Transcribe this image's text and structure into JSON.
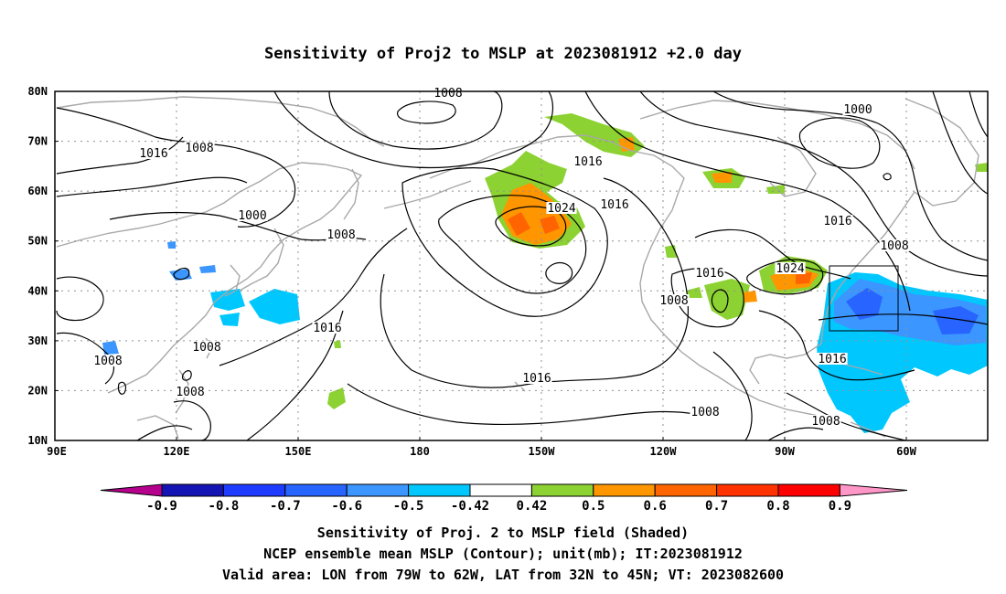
{
  "title": "Sensitivity of Proj2 to MSLP at 2023081912 +2.0 day",
  "map": {
    "lon_labels": [
      "90E",
      "120E",
      "150E",
      "180",
      "150W",
      "120W",
      "90W",
      "60W"
    ],
    "lat_labels": [
      "80N",
      "70N",
      "60N",
      "50N",
      "40N",
      "30N",
      "20N",
      "10N"
    ],
    "contour_labels": [
      "1008",
      "1016",
      "1008",
      "1000",
      "1008",
      "1016",
      "1008",
      "1008",
      "1008",
      "1024",
      "1016",
      "1016",
      "1016",
      "1000",
      "1016",
      "1008",
      "1016",
      "1024",
      "1008",
      "1016",
      "1008",
      "1008"
    ],
    "valid_box": {
      "lon_from": "79W",
      "lon_to": "62W",
      "lat_from": "32N",
      "lat_to": "45N"
    }
  },
  "colorbar": {
    "tick_labels": [
      "-0.9",
      "-0.8",
      "-0.7",
      "-0.6",
      "-0.5",
      "-0.42",
      "0.42",
      "0.5",
      "0.6",
      "0.7",
      "0.8",
      "0.9"
    ],
    "colors": [
      "#b4008c",
      "#1414b4",
      "#1e3cff",
      "#2864ff",
      "#3c96ff",
      "#00c8ff",
      "#ffffff",
      "#8cd232",
      "#ff9600",
      "#ff6400",
      "#ff3200",
      "#ff0000",
      "#ff96c8"
    ]
  },
  "captions": [
    "Sensitivity of Proj. 2 to MSLP field (Shaded)",
    "NCEP ensemble mean MSLP (Contour); unit(mb); IT:2023081912",
    "Valid area: LON from 79W to 62W, LAT from 32N to 45N; VT: 2023082600"
  ]
}
